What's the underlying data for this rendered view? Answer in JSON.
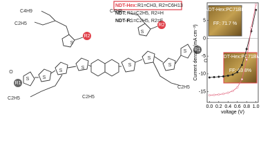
{
  "compounds": [
    {
      "name": "NDT-Hex:",
      "formula": "R1=CH3, R2=C6H13"
    },
    {
      "name": "NDT:",
      "formula": "R1=C2H5, R2=H"
    },
    {
      "name": "NDT-F:",
      "formula": "R1=C2H5, R2=F"
    }
  ],
  "structure_labels": [
    "C4H9",
    "C2H5",
    "C4H9",
    "C2H5",
    "C2H5",
    "C2H5",
    "R1",
    "R1",
    "R2",
    "R2",
    "O",
    "O",
    "S",
    "S",
    "S",
    "S",
    "S",
    "S",
    "S",
    "S",
    "S",
    "S"
  ],
  "chart_data": {
    "type": "line",
    "x_label": "voltage (V)",
    "y_label": "Current density (mA cm⁻²)",
    "x": [
      0.0,
      0.1,
      0.2,
      0.3,
      0.4,
      0.5,
      0.6,
      0.7,
      0.8,
      0.9,
      1.0
    ],
    "series": [
      {
        "color": "#222222",
        "values": [
          -11.0,
          -10.9,
          -10.8,
          -10.7,
          -10.5,
          -10.2,
          -9.5,
          -7.5,
          -3.0,
          2.0,
          8.0
        ]
      },
      {
        "color": "#e0607a",
        "values": [
          -16.0,
          -15.9,
          -15.8,
          -15.6,
          -15.3,
          -14.8,
          -13.8,
          -11.5,
          -6.0,
          3.0,
          9.5
        ]
      }
    ],
    "xlim": [
      -0.05,
      1.05
    ],
    "xticks": [
      {
        "value": 0,
        "label": "0.0"
      },
      0.2,
      0.4,
      0.6,
      0.8,
      {
        "value": 1,
        "label": "1.0"
      }
    ],
    "ylim": [
      -18,
      10
    ],
    "yticks": [
      -15,
      -10,
      -5,
      0,
      5
    ],
    "insets": [
      {
        "title": "NDT-Hex:PC71BM",
        "ff": "FF: 71.7 %"
      },
      {
        "title": "NDT-Hex:PC71BM",
        "ff": "FF: 63.8%"
      }
    ]
  }
}
